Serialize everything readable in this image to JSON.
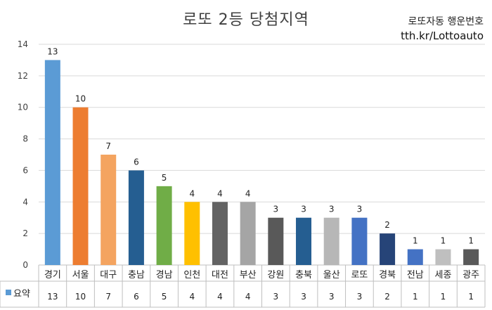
{
  "header": {
    "title": "로또 2등 당첨지역",
    "brand_name": "로또자동 행운번호",
    "brand_url": "tth.kr/Lottoauto"
  },
  "chart_data": {
    "type": "bar",
    "categories": [
      "경기",
      "서울",
      "대구",
      "충남",
      "경남",
      "인천",
      "대전",
      "부산",
      "강원",
      "충북",
      "울산",
      "로또",
      "경북",
      "전남",
      "세종",
      "광주"
    ],
    "series": [
      {
        "name": "요약",
        "values": [
          13,
          10,
          7,
          6,
          5,
          4,
          4,
          4,
          3,
          3,
          3,
          3,
          2,
          1,
          1,
          1
        ]
      }
    ],
    "ylim": [
      0,
      14
    ],
    "yticks": [
      0,
      2,
      4,
      6,
      8,
      10,
      12,
      14
    ],
    "grid": true,
    "data_labels": true,
    "data_table": true,
    "legend_key_color": "#5B9BD5",
    "bar_colors": [
      "#5B9BD5",
      "#ED7D31",
      "#F4A460",
      "#255E91",
      "#70AD47",
      "#FFC000",
      "#636363",
      "#A5A5A5",
      "#595959",
      "#255E91",
      "#B7B7B7",
      "#4472C4",
      "#264478",
      "#4472C4",
      "#BFBFBF",
      "#595959"
    ]
  }
}
